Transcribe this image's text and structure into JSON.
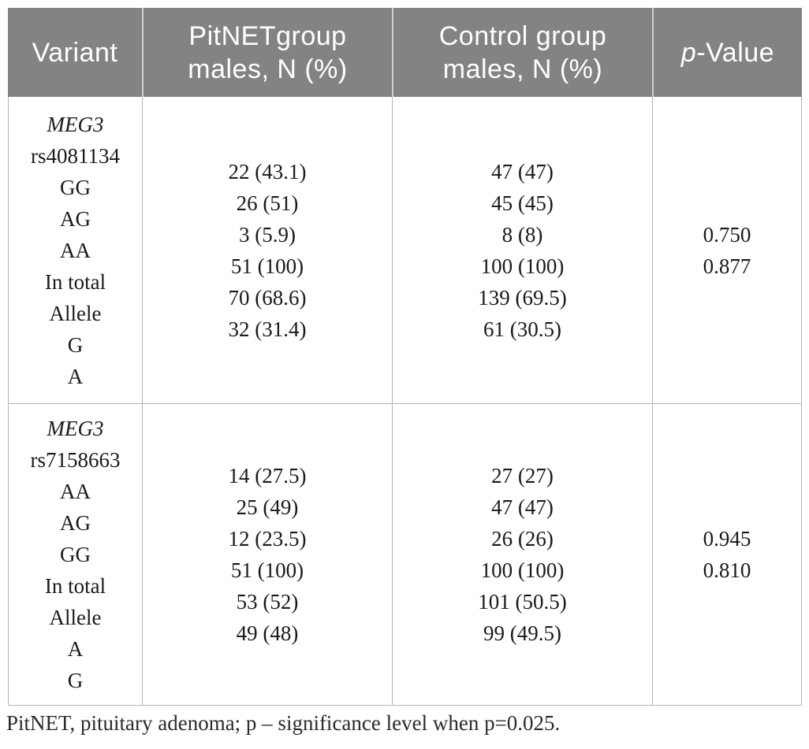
{
  "header": {
    "col_variant": "Variant",
    "col_pitnet_lines": [
      "PitNETgroup",
      "males, N (%)"
    ],
    "col_control_lines": [
      "Control group",
      "males, N (%)"
    ],
    "col_pvalue_italic": "p",
    "col_pvalue_rest": "-Value"
  },
  "rows": [
    {
      "variant": {
        "gene": "MEG3",
        "lines": [
          "rs4081134",
          "GG",
          "AG",
          "AA",
          "In total",
          "Allele",
          "G",
          "A"
        ]
      },
      "pitnet": [
        "22 (43.1)",
        "26 (51)",
        "3 (5.9)",
        "51 (100)",
        "70 (68.6)",
        "32 (31.4)"
      ],
      "control": [
        "47 (47)",
        "45 (45)",
        "8 (8)",
        "100 (100)",
        "139 (69.5)",
        "61 (30.5)"
      ],
      "pvalues": [
        "0.750",
        "0.877"
      ]
    },
    {
      "variant": {
        "gene": "MEG3",
        "lines": [
          "rs7158663",
          "AA",
          "AG",
          "GG",
          "In total",
          "Allele",
          "A",
          "G"
        ]
      },
      "pitnet": [
        "14 (27.5)",
        "25 (49)",
        "12 (23.5)",
        "51 (100)",
        "53 (52)",
        "49 (48)"
      ],
      "control": [
        "27 (27)",
        "47 (47)",
        "26 (26)",
        "100 (100)",
        "101 (50.5)",
        "99 (49.5)"
      ],
      "pvalues": [
        "0.945",
        "0.810"
      ]
    }
  ],
  "footnote": "PitNET, pituitary adenoma; p – significance level when p=0.025.",
  "colors": {
    "header_bg": "#838383",
    "header_text": "#ffffff",
    "body_text": "#1a1a1a",
    "border": "#b5b5b5"
  }
}
